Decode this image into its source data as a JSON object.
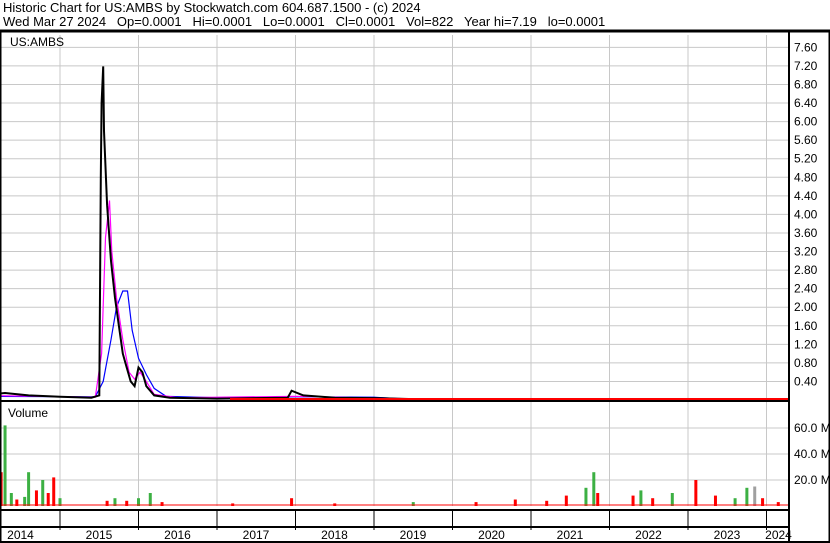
{
  "header": {
    "line1": "Historic Chart for US:AMBS by Stockwatch.com 604.687.1500 - (c) 2024",
    "line2": "Wed Mar 27 2024   Op=0.0001   Hi=0.0001   Lo=0.0001   Cl=0.0001   Vol=822   Year hi=7.19   lo=0.0001"
  },
  "chart_data": [
    {
      "type": "line",
      "title": "US:AMBS",
      "ylim": [
        0,
        7.8
      ],
      "grid": true,
      "ytick_labels": [
        "0.40",
        "0.80",
        "1.20",
        "1.60",
        "2.00",
        "2.40",
        "2.80",
        "3.20",
        "3.60",
        "4.00",
        "4.40",
        "4.80",
        "5.20",
        "5.60",
        "6.00",
        "6.40",
        "6.80",
        "7.20",
        "7.60"
      ],
      "series": [
        {
          "color": "#000000",
          "points": [
            [
              2014.0,
              0.1
            ],
            [
              2014.3,
              0.15
            ],
            [
              2014.6,
              0.1
            ],
            [
              2015.0,
              0.07
            ],
            [
              2015.4,
              0.05
            ],
            [
              2015.5,
              0.1
            ],
            [
              2015.52,
              4.8
            ],
            [
              2015.53,
              6.4
            ],
            [
              2015.55,
              7.19
            ],
            [
              2015.56,
              5.8
            ],
            [
              2015.6,
              4.2
            ],
            [
              2015.65,
              3.0
            ],
            [
              2015.7,
              2.2
            ],
            [
              2015.75,
              1.6
            ],
            [
              2015.8,
              1.0
            ],
            [
              2015.85,
              0.7
            ],
            [
              2015.9,
              0.4
            ],
            [
              2015.95,
              0.3
            ],
            [
              2016.0,
              0.7
            ],
            [
              2016.05,
              0.6
            ],
            [
              2016.1,
              0.3
            ],
            [
              2016.2,
              0.1
            ],
            [
              2016.4,
              0.05
            ],
            [
              2017.0,
              0.03
            ],
            [
              2017.9,
              0.05
            ],
            [
              2017.95,
              0.2
            ],
            [
              2018.1,
              0.1
            ],
            [
              2018.5,
              0.05
            ],
            [
              2019.0,
              0.04
            ],
            [
              2019.5,
              0.02
            ],
            [
              2020.0,
              0.01
            ],
            [
              2024.25,
              0.0001
            ]
          ]
        },
        {
          "color": "#ff00ff",
          "points": [
            [
              2014.0,
              0.1
            ],
            [
              2015.45,
              0.06
            ],
            [
              2015.53,
              1.0
            ],
            [
              2015.58,
              3.5
            ],
            [
              2015.63,
              4.3
            ],
            [
              2015.66,
              3.2
            ],
            [
              2015.72,
              2.2
            ],
            [
              2015.8,
              1.3
            ],
            [
              2015.88,
              0.6
            ],
            [
              2015.95,
              0.45
            ],
            [
              2016.02,
              0.6
            ],
            [
              2016.1,
              0.4
            ],
            [
              2016.2,
              0.12
            ],
            [
              2016.5,
              0.05
            ],
            [
              2018.0,
              0.08
            ],
            [
              2019.0,
              0.04
            ],
            [
              2020.0,
              0.01
            ],
            [
              2024.25,
              0.0001
            ]
          ]
        },
        {
          "color": "#0000ff",
          "points": [
            [
              2014.0,
              0.08
            ],
            [
              2015.45,
              0.07
            ],
            [
              2015.55,
              0.4
            ],
            [
              2015.65,
              1.3
            ],
            [
              2015.72,
              2.0
            ],
            [
              2015.8,
              2.35
            ],
            [
              2015.86,
              2.35
            ],
            [
              2015.92,
              1.5
            ],
            [
              2016.0,
              0.9
            ],
            [
              2016.1,
              0.55
            ],
            [
              2016.2,
              0.25
            ],
            [
              2016.35,
              0.08
            ],
            [
              2017.0,
              0.05
            ],
            [
              2018.0,
              0.07
            ],
            [
              2019.0,
              0.06
            ],
            [
              2019.4,
              0.02
            ],
            [
              2020.0,
              0.01
            ],
            [
              2024.25,
              0.0001
            ]
          ]
        }
      ]
    },
    {
      "type": "bar",
      "title": "Volume",
      "ylim": [
        0,
        70
      ],
      "ytick_labels": [
        "20.0 M",
        "40.0 M",
        "60.0 M"
      ],
      "bars": [
        [
          2014.05,
          5,
          "r"
        ],
        [
          2014.12,
          8,
          "r"
        ],
        [
          2014.2,
          12,
          "g"
        ],
        [
          2014.25,
          26,
          "r"
        ],
        [
          2014.3,
          62,
          "g"
        ],
        [
          2014.38,
          10,
          "g"
        ],
        [
          2014.45,
          5,
          "r"
        ],
        [
          2014.55,
          7,
          "g"
        ],
        [
          2014.6,
          26,
          "g"
        ],
        [
          2014.7,
          12,
          "r"
        ],
        [
          2014.78,
          20,
          "g"
        ],
        [
          2014.85,
          10,
          "r"
        ],
        [
          2014.92,
          22,
          "r"
        ],
        [
          2015.0,
          6,
          "g"
        ],
        [
          2015.6,
          4,
          "r"
        ],
        [
          2015.7,
          6,
          "g"
        ],
        [
          2015.85,
          4,
          "r"
        ],
        [
          2016.0,
          6,
          "g"
        ],
        [
          2016.15,
          10,
          "g"
        ],
        [
          2016.3,
          3,
          "r"
        ],
        [
          2017.2,
          2,
          "r"
        ],
        [
          2017.95,
          6,
          "r"
        ],
        [
          2018.5,
          2,
          "r"
        ],
        [
          2019.5,
          3,
          "g"
        ],
        [
          2020.3,
          3,
          "r"
        ],
        [
          2020.8,
          5,
          "r"
        ],
        [
          2021.2,
          4,
          "r"
        ],
        [
          2021.45,
          8,
          "r"
        ],
        [
          2021.7,
          14,
          "g"
        ],
        [
          2021.8,
          26,
          "g"
        ],
        [
          2021.85,
          10,
          "r"
        ],
        [
          2022.3,
          8,
          "r"
        ],
        [
          2022.4,
          12,
          "g"
        ],
        [
          2022.55,
          6,
          "r"
        ],
        [
          2022.8,
          10,
          "g"
        ],
        [
          2023.1,
          20,
          "r"
        ],
        [
          2023.35,
          8,
          "r"
        ],
        [
          2023.6,
          6,
          "g"
        ],
        [
          2023.75,
          14,
          "g"
        ],
        [
          2023.85,
          15,
          "gr"
        ],
        [
          2023.95,
          6,
          "r"
        ],
        [
          2024.15,
          3,
          "r"
        ]
      ]
    },
    {
      "type": "axis",
      "xtick_labels": [
        "2014",
        "2015",
        "2016",
        "2017",
        "2018",
        "2019",
        "2020",
        "2021",
        "2022",
        "2023",
        "2024"
      ]
    }
  ]
}
